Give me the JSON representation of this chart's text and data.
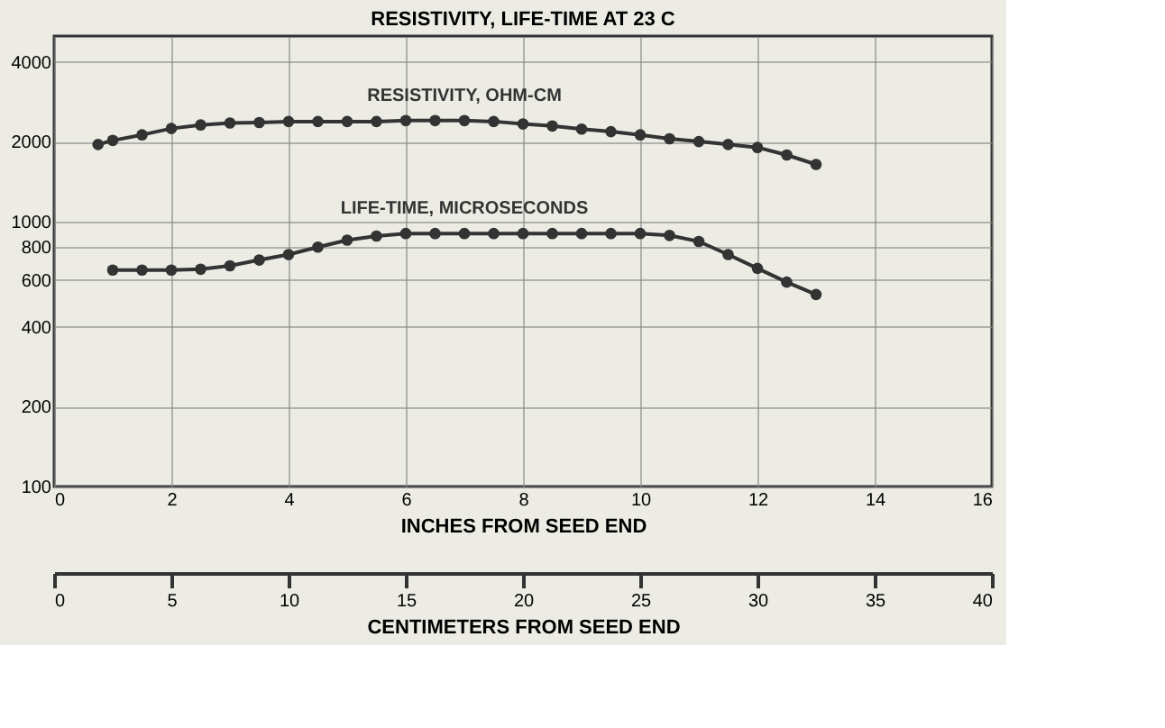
{
  "chart_data": {
    "type": "line",
    "title": "RESISTIVITY, LIFE-TIME AT 23 C",
    "xlabel": "INCHES FROM SEED END",
    "x2label": "CENTIMETERS FROM SEED END",
    "series": [
      {
        "name": "RESISTIVITY, OHM-CM",
        "color": "#333333",
        "x": [
          0.75,
          1,
          1.5,
          2,
          2.5,
          3,
          3.5,
          4,
          4.5,
          5,
          5.5,
          6,
          6.5,
          7,
          7.5,
          8,
          8.5,
          9,
          9.5,
          10,
          10.5,
          11,
          11.5,
          12,
          12.5,
          13
        ],
        "values": [
          1950,
          2020,
          2120,
          2240,
          2310,
          2350,
          2360,
          2380,
          2380,
          2380,
          2380,
          2400,
          2400,
          2400,
          2380,
          2330,
          2290,
          2230,
          2180,
          2120,
          2050,
          2000,
          1950,
          1900,
          1780,
          1640
        ]
      },
      {
        "name": "LIFE-TIME, MICROSECONDS",
        "color": "#333333",
        "x": [
          1,
          1.5,
          2,
          2.5,
          3,
          3.5,
          4,
          4.5,
          5,
          5.5,
          6,
          6.5,
          7,
          7.5,
          8,
          8.5,
          9,
          9.5,
          10,
          10.5,
          11,
          11.5,
          12,
          12.5,
          13
        ],
        "values": [
          655,
          655,
          655,
          660,
          680,
          715,
          750,
          800,
          850,
          880,
          900,
          900,
          900,
          900,
          900,
          900,
          900,
          900,
          900,
          885,
          840,
          750,
          665,
          590,
          530
        ]
      }
    ],
    "xlim": [
      0,
      16
    ],
    "xticks": [
      0,
      2,
      4,
      6,
      8,
      10,
      12,
      14,
      16
    ],
    "x2lim": [
      0,
      40
    ],
    "x2ticks": [
      0,
      5,
      10,
      15,
      20,
      25,
      30,
      35,
      40
    ],
    "ylim": [
      100,
      5000
    ],
    "yticks": [
      100,
      200,
      400,
      600,
      800,
      1000,
      2000,
      4000
    ],
    "log": "y",
    "grid": true,
    "marker": "circle",
    "line_style": "solid"
  }
}
